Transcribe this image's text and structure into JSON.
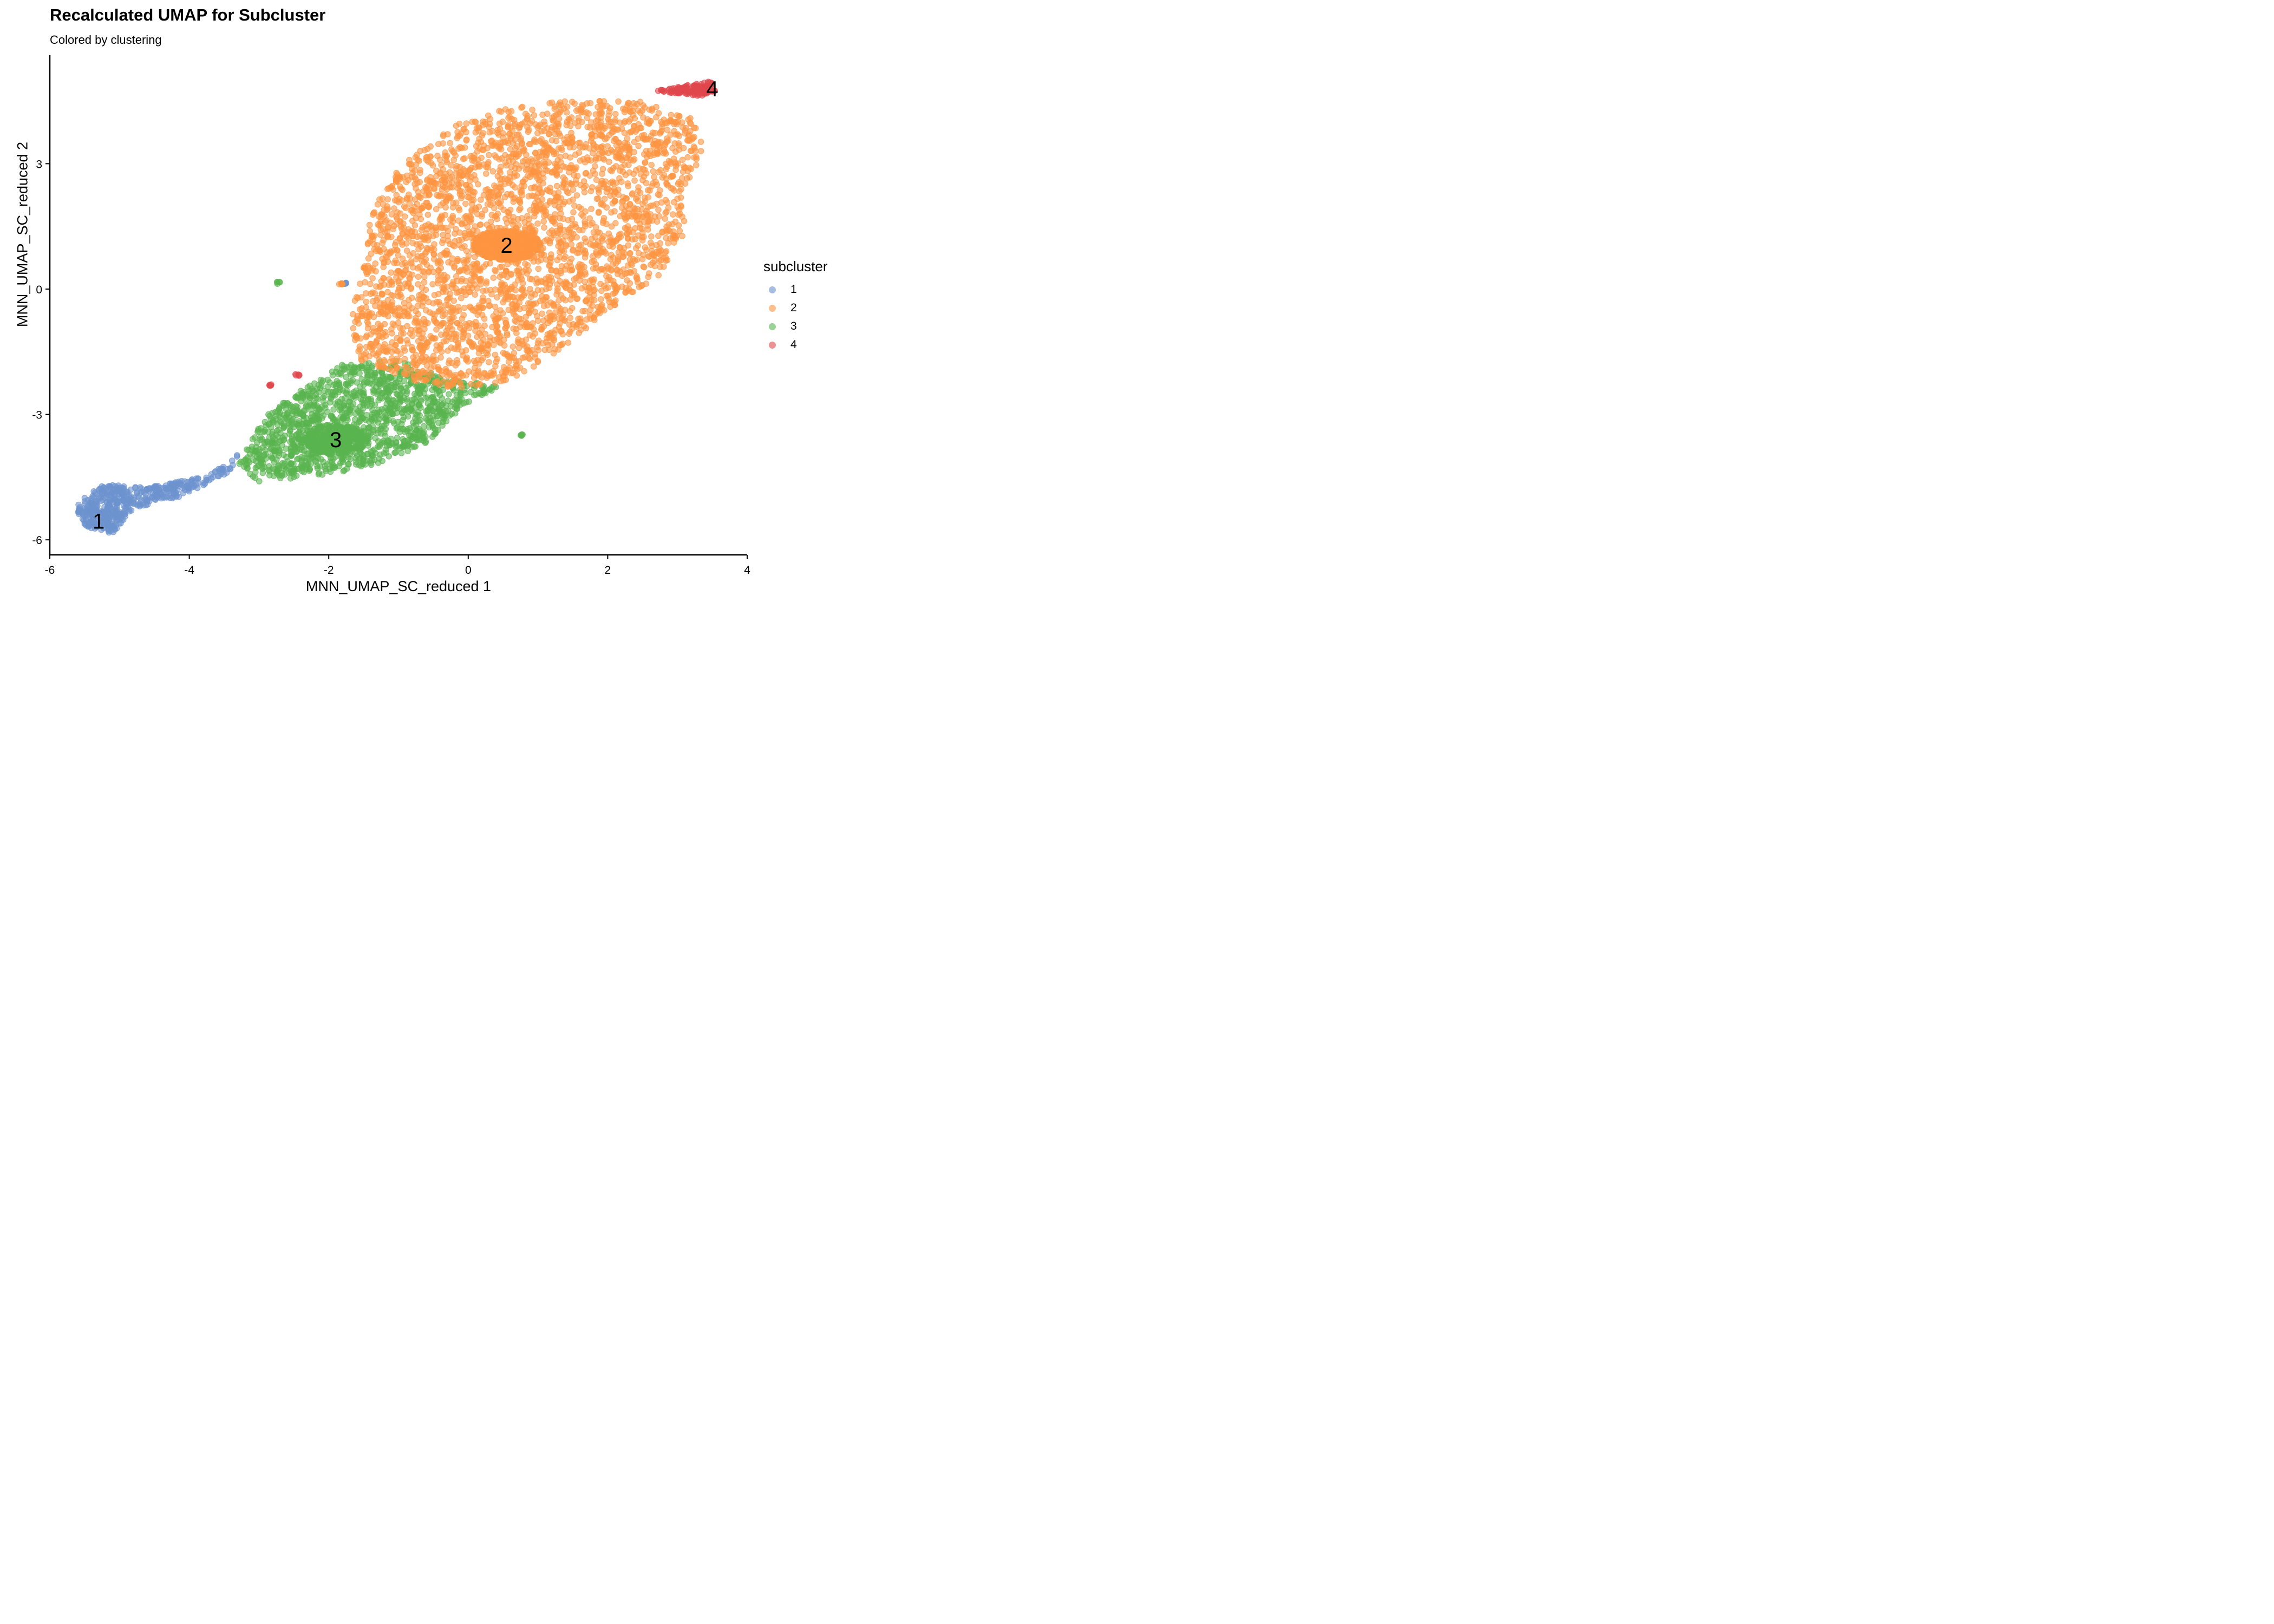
{
  "chart_data": {
    "type": "scatter",
    "title": "Recalculated UMAP for Subcluster",
    "subtitle": "Colored by clustering",
    "xlabel": "MNN_UMAP_SC_reduced 1",
    "ylabel": "MNN_UMAP_SC_reduced 2",
    "xlim": [
      -6,
      4
    ],
    "ylim": [
      -6.3,
      5.5
    ],
    "x_ticks": [
      -6,
      -4,
      -2,
      0,
      2,
      4
    ],
    "y_ticks": [
      -6,
      -3,
      0,
      3
    ],
    "grid": false,
    "legend": {
      "title": "subcluster",
      "position": "right"
    },
    "series": [
      {
        "name": "1",
        "color": "#6D93CF",
        "centroid": [
          -5.3,
          -5.55
        ],
        "approx_points": 420,
        "shape": [
          [
            -5.6,
            -5.1
          ],
          [
            -5.2,
            -4.65
          ],
          [
            -4.6,
            -4.75
          ],
          [
            -3.7,
            -4.45
          ],
          [
            -3.3,
            -3.95
          ],
          [
            -3.4,
            -4.35
          ],
          [
            -4.1,
            -4.95
          ],
          [
            -4.8,
            -5.25
          ],
          [
            -5.1,
            -5.85
          ],
          [
            -5.5,
            -5.7
          ],
          [
            -5.6,
            -5.4
          ]
        ]
      },
      {
        "name": "2",
        "color": "#FE9541",
        "centroid": [
          0.55,
          1.05
        ],
        "approx_points": 3100,
        "shape": [
          [
            -1.0,
            2.9
          ],
          [
            -0.5,
            3.6
          ],
          [
            0.0,
            4.1
          ],
          [
            1.0,
            4.5
          ],
          [
            1.8,
            4.5
          ],
          [
            2.5,
            4.5
          ],
          [
            3.2,
            4.1
          ],
          [
            3.4,
            3.4
          ],
          [
            3.1,
            2.4
          ],
          [
            3.1,
            1.3
          ],
          [
            2.8,
            0.4
          ],
          [
            2.0,
            -0.5
          ],
          [
            1.3,
            -1.5
          ],
          [
            0.6,
            -2.2
          ],
          [
            -0.3,
            -2.4
          ],
          [
            -1.0,
            -2.1
          ],
          [
            -1.6,
            -1.7
          ],
          [
            -1.7,
            -0.6
          ],
          [
            -1.5,
            0.6
          ],
          [
            -1.4,
            1.8
          ]
        ]
      },
      {
        "name": "3",
        "color": "#59B44F",
        "centroid": [
          -1.9,
          -3.6
        ],
        "approx_points": 1300,
        "shape": [
          [
            -2.9,
            -3.0
          ],
          [
            -2.4,
            -2.4
          ],
          [
            -1.8,
            -1.8
          ],
          [
            -1.0,
            -1.7
          ],
          [
            -0.2,
            -2.2
          ],
          [
            0.5,
            -2.3
          ],
          [
            -0.2,
            -3.0
          ],
          [
            -0.6,
            -3.7
          ],
          [
            -1.5,
            -4.3
          ],
          [
            -2.3,
            -4.5
          ],
          [
            -3.0,
            -4.6
          ],
          [
            -3.3,
            -4.2
          ],
          [
            -3.1,
            -3.6
          ]
        ]
      },
      {
        "name": "4",
        "color": "#E0474C",
        "centroid": [
          3.35,
          4.8
        ],
        "approx_points": 110,
        "shape": [
          [
            2.7,
            4.75
          ],
          [
            3.5,
            4.98
          ],
          [
            3.55,
            4.75
          ],
          [
            3.3,
            4.6
          ]
        ]
      }
    ],
    "small_clumps": [
      {
        "series": "3",
        "x": -2.72,
        "y": 0.15
      },
      {
        "series": "3",
        "x": 0.75,
        "y": -3.5
      },
      {
        "series": "4",
        "x": -2.85,
        "y": -2.3
      },
      {
        "series": "4",
        "x": -2.45,
        "y": -2.05
      },
      {
        "series": "1",
        "x": -1.78,
        "y": 0.13
      },
      {
        "series": "2",
        "x": -1.82,
        "y": 0.12
      }
    ],
    "cluster_labels": [
      {
        "text": "1",
        "x": -5.3,
        "y": -5.55
      },
      {
        "text": "2",
        "x": 0.55,
        "y": 1.05
      },
      {
        "text": "3",
        "x": -1.9,
        "y": -3.6
      },
      {
        "text": "4",
        "x": 3.5,
        "y": 4.8
      }
    ]
  }
}
